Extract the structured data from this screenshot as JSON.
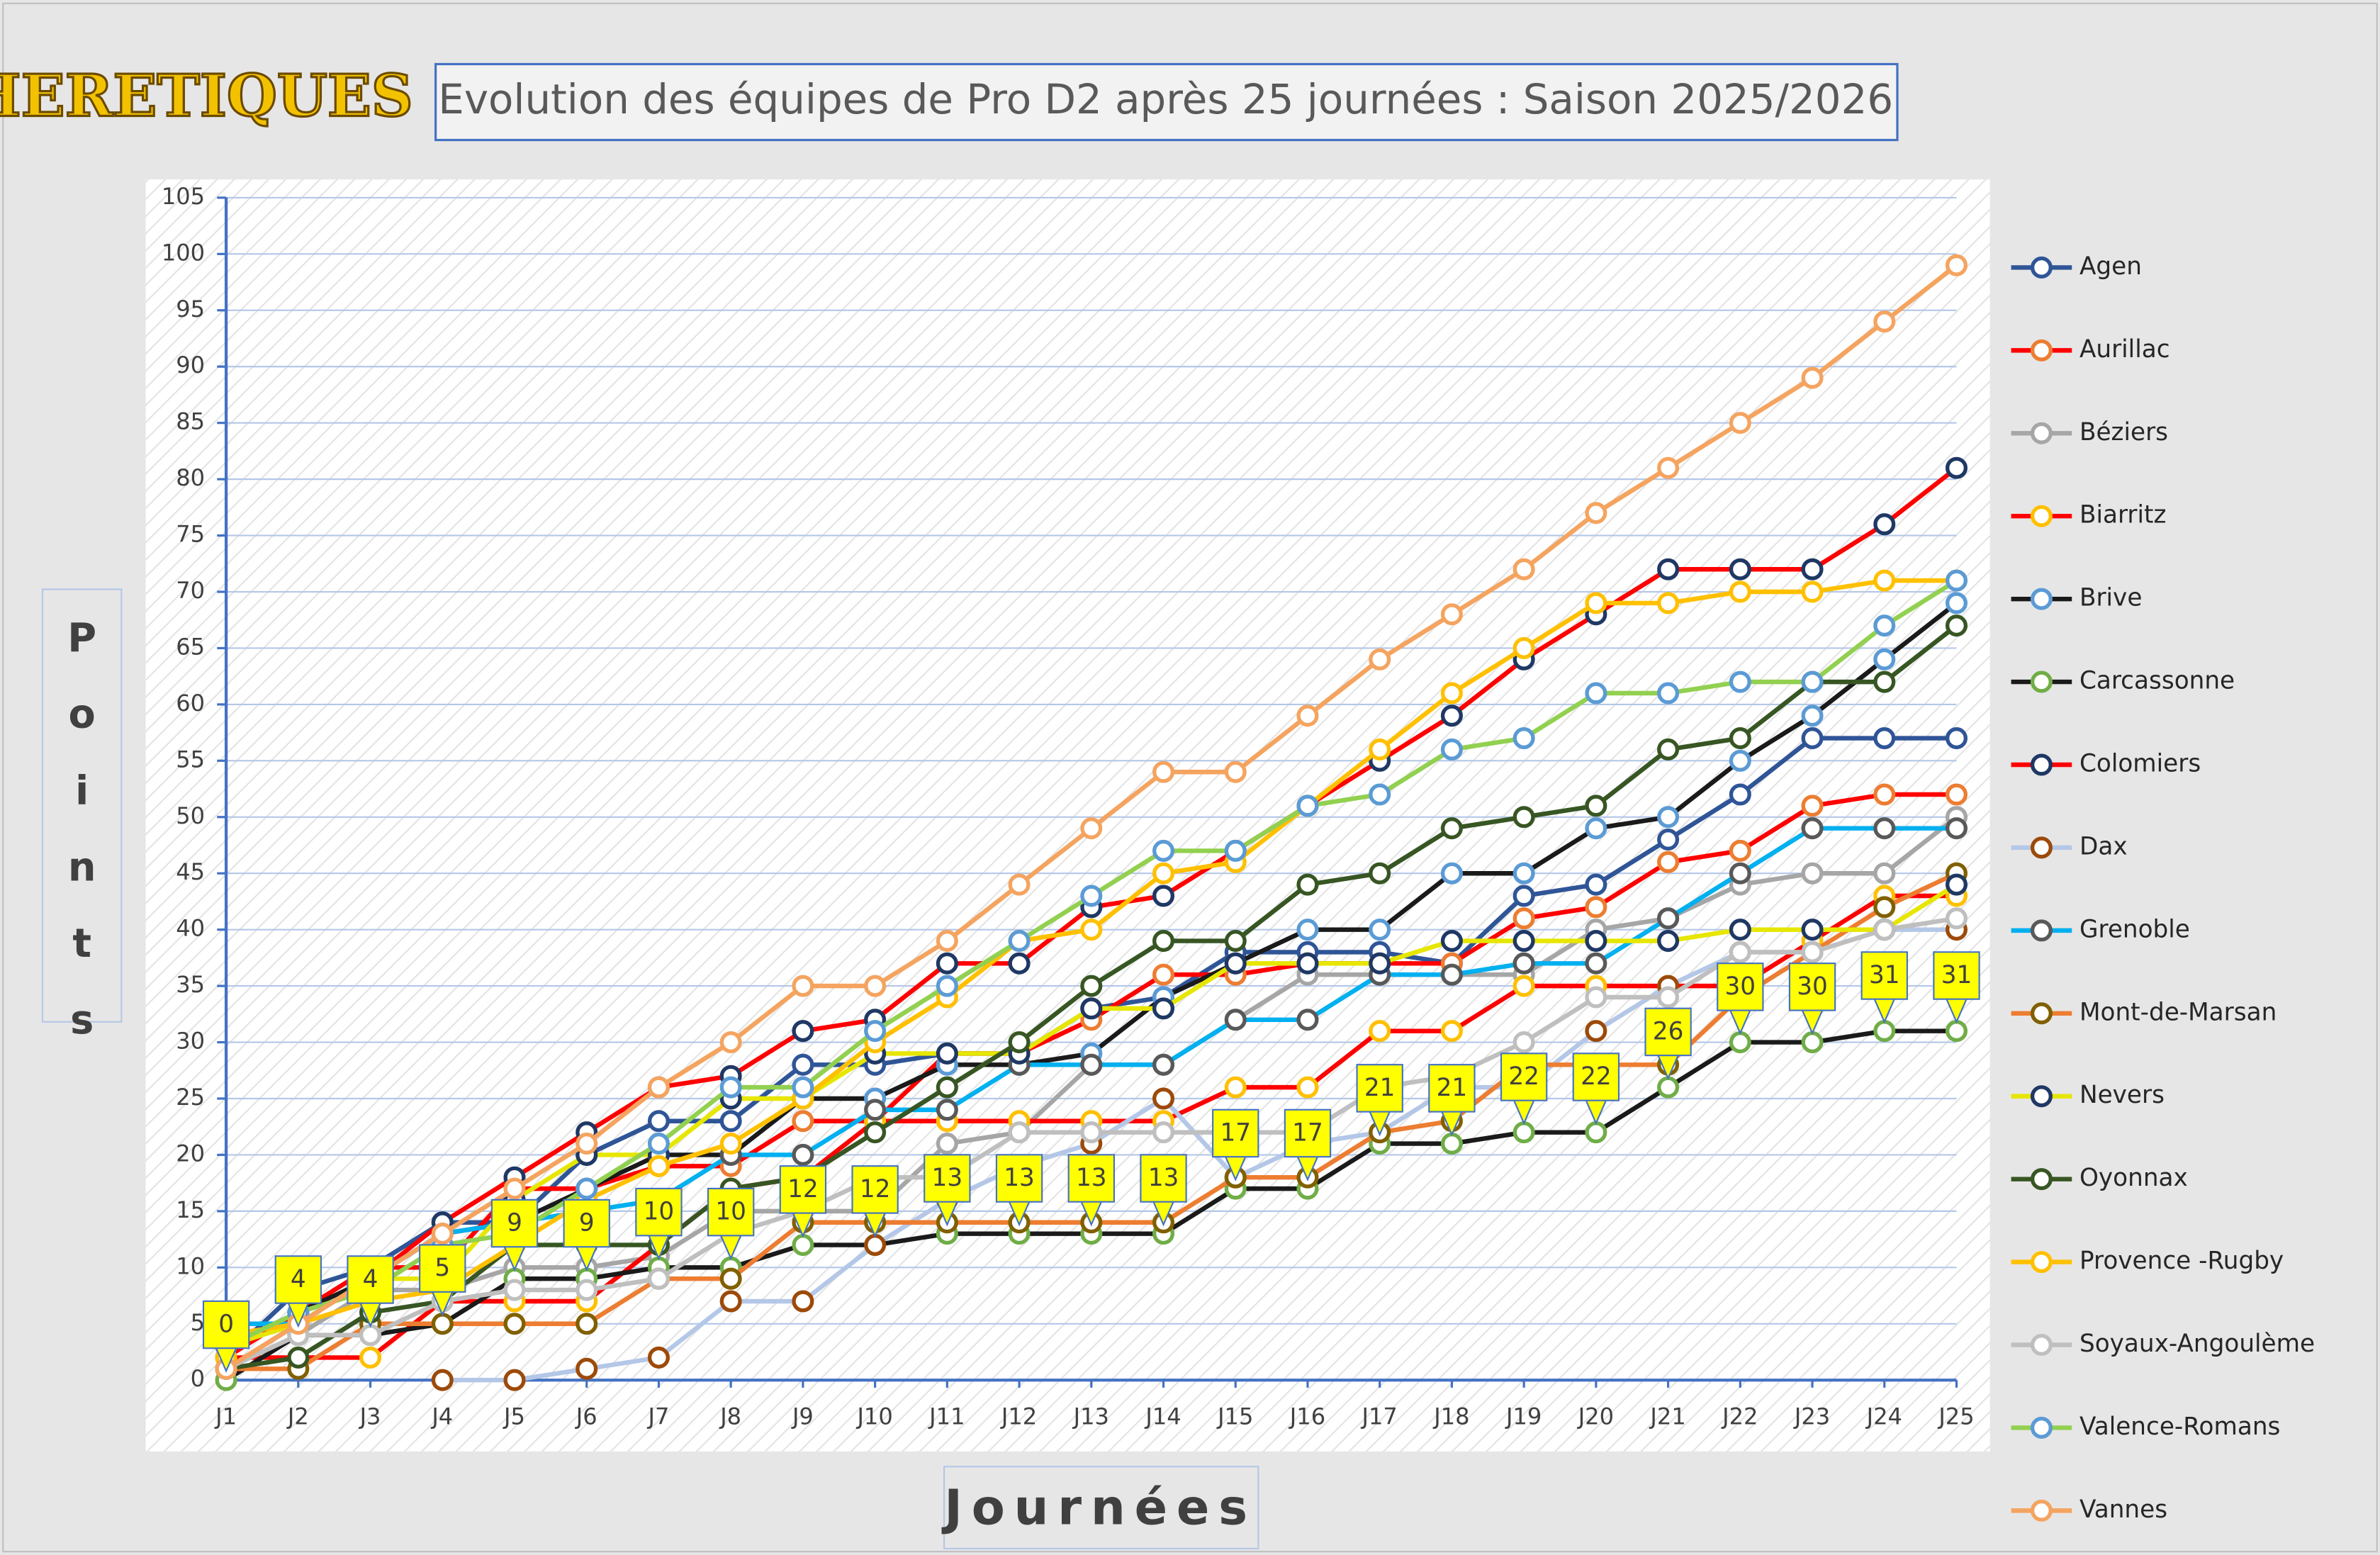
{
  "logo": "HERETIQUES",
  "chart_data": {
    "type": "line",
    "title": "Evolution des équipes de Pro D2 après 25 journées : Saison 2025/2026",
    "y_label": "Points",
    "x_label": "Journées",
    "categories": [
      "J1",
      "J2",
      "J3",
      "J4",
      "J5",
      "J6",
      "J7",
      "J8",
      "J9",
      "J10",
      "J11",
      "J12",
      "J13",
      "J14",
      "J15",
      "J16",
      "J17",
      "J18",
      "J19",
      "J20",
      "J21",
      "J22",
      "J23",
      "J24",
      "J25"
    ],
    "ylim": [
      0,
      105
    ],
    "yticks": [
      0,
      5,
      10,
      15,
      20,
      25,
      30,
      35,
      40,
      45,
      50,
      55,
      60,
      65,
      70,
      75,
      80,
      85,
      90,
      95,
      100,
      105
    ],
    "grid": true,
    "legend": "right",
    "callout_series": "Carcassonne",
    "series": [
      {
        "name": "Agen",
        "color": "#2f5597",
        "marker_color": "#2f5597",
        "values": [
          2,
          8,
          10,
          14,
          14,
          20,
          23,
          23,
          28,
          28,
          29,
          29,
          33,
          34,
          38,
          38,
          38,
          37,
          43,
          44,
          48,
          52,
          57,
          57,
          57
        ]
      },
      {
        "name": "Aurillac",
        "color": "#ff0000",
        "marker_color": "#ed7d31",
        "values": [
          2,
          6,
          10,
          10,
          17,
          17,
          19,
          19,
          23,
          23,
          29,
          29,
          32,
          36,
          36,
          37,
          37,
          37,
          41,
          42,
          46,
          47,
          51,
          52,
          52
        ]
      },
      {
        "name": "Béziers",
        "color": "#a6a6a6",
        "marker_color": "#a6a6a6",
        "values": [
          1,
          4,
          8,
          8,
          10,
          10,
          11,
          15,
          15,
          15,
          21,
          22,
          28,
          28,
          32,
          36,
          36,
          36,
          36,
          40,
          41,
          44,
          45,
          45,
          50
        ]
      },
      {
        "name": "Biarritz",
        "color": "#ff0000",
        "marker_color": "#ffc000",
        "values": [
          2,
          2,
          2,
          7,
          7,
          7,
          12,
          17,
          18,
          23,
          23,
          23,
          23,
          23,
          26,
          26,
          31,
          31,
          35,
          35,
          35,
          35,
          39,
          43,
          43
        ]
      },
      {
        "name": "Brive",
        "color": "#1a1a1a",
        "marker_color": "#5b9bd5",
        "values": [
          3,
          6,
          9,
          13,
          14,
          17,
          20,
          20,
          25,
          25,
          28,
          28,
          29,
          34,
          37,
          40,
          40,
          45,
          45,
          49,
          50,
          55,
          59,
          64,
          69
        ]
      },
      {
        "name": "Carcassonne",
        "color": "#1a1a1a",
        "marker_color": "#70ad47",
        "values": [
          0,
          4,
          4,
          5,
          9,
          9,
          10,
          10,
          12,
          12,
          13,
          13,
          13,
          13,
          17,
          17,
          21,
          21,
          22,
          22,
          26,
          30,
          30,
          31,
          31
        ]
      },
      {
        "name": "Colomiers",
        "color": "#ff0000",
        "marker_color": "#1f3864",
        "values": [
          1,
          5,
          9,
          14,
          18,
          22,
          26,
          27,
          31,
          32,
          37,
          37,
          42,
          43,
          47,
          51,
          55,
          59,
          64,
          68,
          72,
          72,
          72,
          76,
          81
        ]
      },
      {
        "name": "Dax",
        "color": "#b4c7e7",
        "marker_color": "#9c4a0a",
        "values": [
          null,
          null,
          null,
          0,
          0,
          1,
          2,
          7,
          7,
          12,
          16,
          19,
          21,
          25,
          18,
          21,
          22,
          26,
          26,
          31,
          35,
          38,
          38,
          40,
          40
        ]
      },
      {
        "name": "Grenoble",
        "color": "#00b0f0",
        "marker_color": "#595959",
        "values": [
          5,
          5,
          9,
          13,
          14,
          15,
          16,
          20,
          20,
          24,
          24,
          28,
          28,
          28,
          32,
          32,
          36,
          36,
          37,
          37,
          41,
          45,
          49,
          49,
          49
        ]
      },
      {
        "name": "Mont-de-Marsan",
        "color": "#ed7d31",
        "marker_color": "#806000",
        "values": [
          1,
          1,
          5,
          5,
          5,
          5,
          9,
          9,
          14,
          14,
          14,
          14,
          14,
          14,
          18,
          18,
          22,
          23,
          28,
          28,
          28,
          34,
          38,
          42,
          45
        ]
      },
      {
        "name": "Nevers",
        "color": "#e6e600",
        "marker_color": "#1f3864",
        "values": [
          3,
          5,
          9,
          9,
          16,
          20,
          20,
          25,
          25,
          29,
          29,
          29,
          33,
          33,
          37,
          37,
          37,
          39,
          39,
          39,
          39,
          40,
          40,
          40,
          44
        ]
      },
      {
        "name": "Oyonnax",
        "color": "#375623",
        "marker_color": "#375623",
        "values": [
          1,
          2,
          6,
          7,
          12,
          12,
          12,
          17,
          18,
          22,
          26,
          30,
          35,
          39,
          39,
          44,
          45,
          49,
          50,
          51,
          56,
          57,
          62,
          62,
          67
        ]
      },
      {
        "name": "Provence -Rugby",
        "color": "#ffc000",
        "marker_color": "#ffc000",
        "values": [
          4,
          5,
          7,
          8,
          12,
          16,
          19,
          21,
          25,
          30,
          34,
          39,
          40,
          45,
          46,
          51,
          56,
          61,
          65,
          69,
          69,
          70,
          70,
          71,
          71
        ]
      },
      {
        "name": "Soyaux-Angoulème",
        "color": "#bfbfbf",
        "marker_color": "#bfbfbf",
        "values": [
          1,
          4,
          4,
          7,
          8,
          8,
          9,
          13,
          15,
          18,
          18,
          22,
          22,
          22,
          22,
          22,
          26,
          27,
          30,
          34,
          34,
          38,
          38,
          40,
          41
        ]
      },
      {
        "name": "Valence-Romans",
        "color": "#92d050",
        "marker_color": "#5b9bd5",
        "values": [
          3,
          6,
          8,
          12,
          13,
          17,
          21,
          26,
          26,
          31,
          35,
          39,
          43,
          47,
          47,
          51,
          52,
          56,
          57,
          61,
          61,
          62,
          62,
          67,
          71
        ]
      },
      {
        "name": "Vannes",
        "color": "#f4a460",
        "marker_color": "#f4a460",
        "values": [
          1,
          5,
          9,
          13,
          17,
          21,
          26,
          30,
          35,
          35,
          39,
          44,
          49,
          54,
          54,
          59,
          64,
          68,
          72,
          77,
          81,
          85,
          89,
          94,
          99
        ]
      }
    ]
  }
}
